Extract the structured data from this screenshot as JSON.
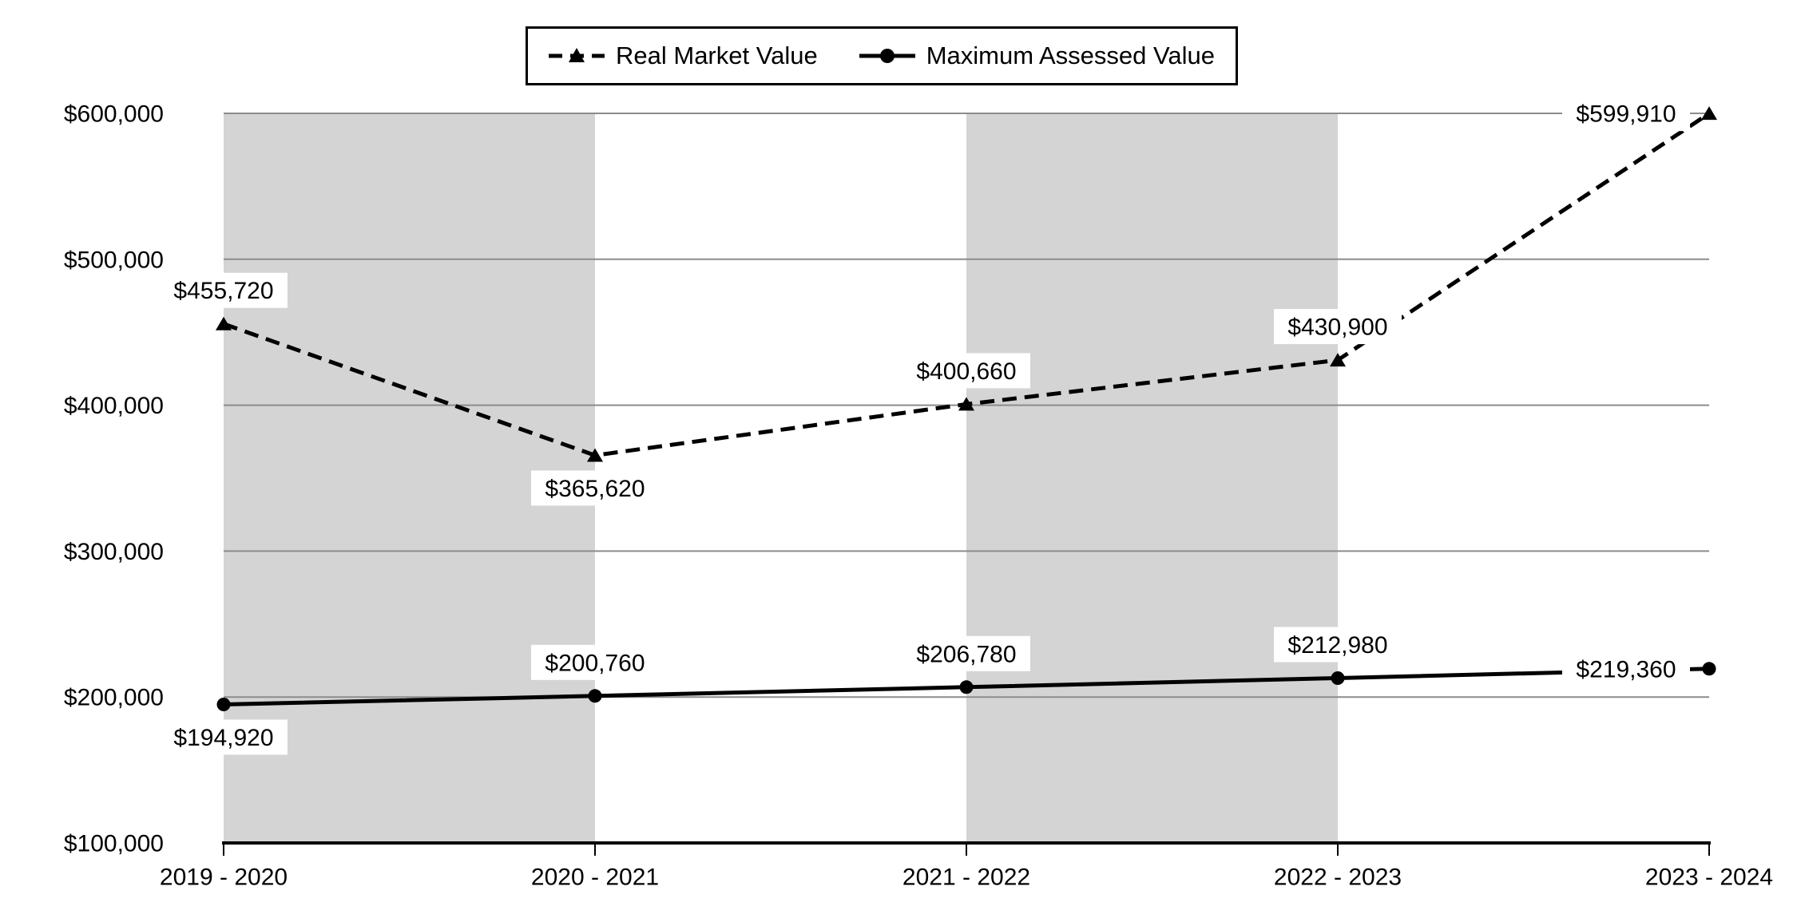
{
  "page": {
    "background": "#ffffff"
  },
  "legend": {
    "position": "top",
    "items": [
      {
        "label": "Real Market Value",
        "marker": "triangle-dashed-line"
      },
      {
        "label": "Maximum Assessed Value",
        "marker": "circle-solid-line"
      }
    ]
  },
  "chart_data": {
    "type": "line",
    "title": "",
    "xlabel": "",
    "ylabel": "",
    "categories": [
      "2019 - 2020",
      "2020 - 2021",
      "2021 - 2022",
      "2022 - 2023",
      "2023 - 2024"
    ],
    "series": [
      {
        "name": "Real Market Value",
        "line_style": "dashed",
        "marker": "triangle",
        "color": "#000000",
        "values": [
          455720,
          365620,
          400660,
          430900,
          599910
        ],
        "labels": [
          "$455,720",
          "$365,620",
          "$400,660",
          "$430,900",
          "$599,910"
        ],
        "label_positions": [
          "above",
          "below",
          "above",
          "above",
          "left"
        ]
      },
      {
        "name": "Maximum Assessed Value",
        "line_style": "solid",
        "marker": "circle",
        "color": "#000000",
        "values": [
          194920,
          200760,
          206780,
          212980,
          219360
        ],
        "labels": [
          "$194,920",
          "$200,760",
          "$206,780",
          "$212,980",
          "$219,360"
        ],
        "label_positions": [
          "below",
          "above",
          "above",
          "above",
          "left"
        ]
      }
    ],
    "y_axis": {
      "min": 100000,
      "max": 600000,
      "step": 100000,
      "tick_labels": [
        "$100,000",
        "$200,000",
        "$300,000",
        "$400,000",
        "$500,000",
        "$600,000"
      ]
    },
    "grid": true,
    "legend_position": "top",
    "plot_bands": {
      "color": "#d4d4d4",
      "spans": [
        [
          0,
          1
        ],
        [
          2,
          3
        ]
      ]
    },
    "colors": {
      "series": "#000000",
      "gridline": "#8c8c8c",
      "axis": "#000000",
      "label_bg": "#ffffff",
      "text": "#000000"
    }
  }
}
